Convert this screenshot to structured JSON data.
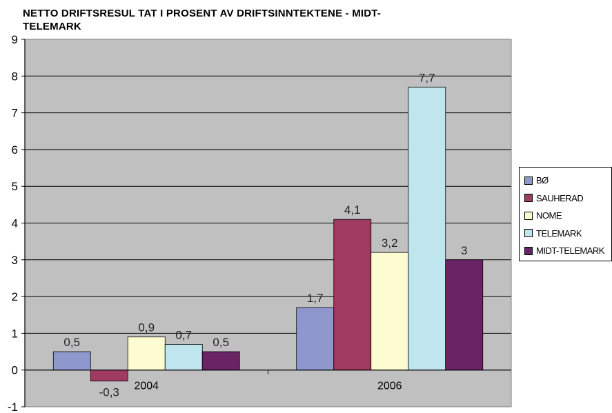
{
  "chart_data": {
    "type": "bar",
    "title": "NETTO DRIFTSRESULTAT I PROSENT AV DRIFTSINNTEKTENE - MIDT-TELEMARK",
    "title_lines": [
      "NETTO DRIFTSRESUL TAT I PROSENT AV DRIFTSINNTEKTENE - MIDT-",
      "TELEMARK"
    ],
    "categories": [
      "2004",
      "2006"
    ],
    "ylim": [
      -1,
      9
    ],
    "yticks": [
      "-1",
      "0",
      "1",
      "2",
      "3",
      "4",
      "5",
      "6",
      "7",
      "8",
      "9"
    ],
    "grid": true,
    "legend_position": "right",
    "plot_background": "#c0c0c0",
    "series": [
      {
        "name": "BØ",
        "values": [
          0.5,
          1.7
        ],
        "labels": [
          "0,5",
          "1,7"
        ],
        "color": "#8f98cc"
      },
      {
        "name": "SAUHERAD",
        "values": [
          -0.3,
          4.1
        ],
        "labels": [
          "-0,3",
          "4,1"
        ],
        "color": "#a03a5e"
      },
      {
        "name": "NOME",
        "values": [
          0.9,
          3.2
        ],
        "labels": [
          "0,9",
          "3,2"
        ],
        "color": "#fdfbd2"
      },
      {
        "name": "TELEMARK",
        "values": [
          0.7,
          7.7
        ],
        "labels": [
          "0,7",
          "7,7"
        ],
        "color": "#bfe6ee"
      },
      {
        "name": "MIDT-TELEMARK",
        "values": [
          0.5,
          3.0
        ],
        "labels": [
          "0,5",
          "3"
        ],
        "color": "#6a2466"
      }
    ]
  }
}
